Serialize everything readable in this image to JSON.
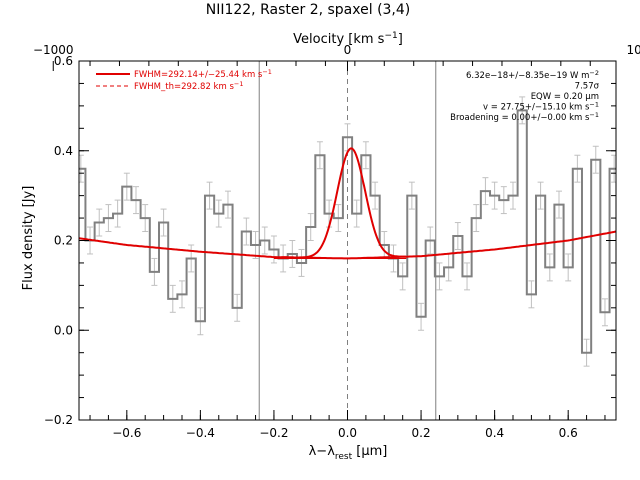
{
  "chart_data": {
    "type": "line",
    "title": "NII122, Raster 2, spaxel (3,4)",
    "xlabel": "λ−λ",
    "xlabel_sub": "rest",
    "xlabel_unit": " [μm]",
    "ylabel": "Flux density [Jy]",
    "top_axis_label": "Velocity [km s",
    "top_axis_sup": "−1",
    "top_axis_close": "]",
    "xlim": [
      -0.73,
      0.73
    ],
    "ylim": [
      -0.2,
      0.6
    ],
    "x_ticks": [
      -0.6,
      -0.4,
      -0.2,
      0.0,
      0.2,
      0.4,
      0.6
    ],
    "x_tick_labels": [
      "−0.6",
      "−0.4",
      "−0.2",
      "0.0",
      "0.2",
      "0.4",
      "0.6"
    ],
    "y_ticks": [
      -0.2,
      0.0,
      0.2,
      0.4,
      0.6
    ],
    "y_tick_labels": [
      "−0.2",
      "0.0",
      "0.2",
      "0.4",
      "0.6"
    ],
    "top_ticks_x": [
      -0.8,
      0.0,
      0.8
    ],
    "top_tick_labels": [
      "−1000",
      "0",
      "1000"
    ],
    "vlines_solid": [
      -0.24,
      0.24
    ],
    "vlines_dashed": [
      0.0
    ],
    "spectrum": {
      "x": [
        -0.725,
        -0.7,
        -0.675,
        -0.65,
        -0.625,
        -0.6,
        -0.575,
        -0.55,
        -0.525,
        -0.5,
        -0.475,
        -0.45,
        -0.425,
        -0.4,
        -0.375,
        -0.35,
        -0.325,
        -0.3,
        -0.275,
        -0.25,
        -0.225,
        -0.2,
        -0.175,
        -0.15,
        -0.125,
        -0.1,
        -0.075,
        -0.05,
        -0.025,
        0.0,
        0.025,
        0.05,
        0.075,
        0.1,
        0.125,
        0.15,
        0.175,
        0.2,
        0.225,
        0.25,
        0.275,
        0.3,
        0.325,
        0.35,
        0.375,
        0.4,
        0.425,
        0.45,
        0.475,
        0.5,
        0.525,
        0.55,
        0.575,
        0.6,
        0.625,
        0.65,
        0.675,
        0.7,
        0.725
      ],
      "y": [
        0.36,
        0.2,
        0.24,
        0.25,
        0.26,
        0.32,
        0.29,
        0.25,
        0.13,
        0.24,
        0.07,
        0.08,
        0.16,
        0.02,
        0.3,
        0.26,
        0.28,
        0.05,
        0.22,
        0.19,
        0.2,
        0.18,
        0.16,
        0.17,
        0.15,
        0.23,
        0.39,
        0.26,
        0.25,
        0.43,
        0.26,
        0.39,
        0.3,
        0.19,
        0.16,
        0.12,
        0.3,
        0.03,
        0.2,
        0.12,
        0.14,
        0.21,
        0.12,
        0.25,
        0.31,
        0.3,
        0.29,
        0.3,
        0.49,
        0.08,
        0.3,
        0.14,
        0.28,
        0.14,
        0.36,
        -0.05,
        0.38,
        0.04,
        0.36
      ],
      "err": [
        0.03,
        0.03,
        0.03,
        0.03,
        0.03,
        0.03,
        0.03,
        0.03,
        0.03,
        0.03,
        0.03,
        0.03,
        0.03,
        0.03,
        0.03,
        0.03,
        0.03,
        0.03,
        0.03,
        0.03,
        0.03,
        0.03,
        0.03,
        0.03,
        0.03,
        0.03,
        0.03,
        0.03,
        0.03,
        0.03,
        0.03,
        0.03,
        0.03,
        0.03,
        0.03,
        0.03,
        0.03,
        0.03,
        0.03,
        0.03,
        0.03,
        0.03,
        0.03,
        0.03,
        0.03,
        0.03,
        0.03,
        0.03,
        0.03,
        0.03,
        0.03,
        0.03,
        0.03,
        0.03,
        0.03,
        0.03,
        0.03,
        0.03,
        0.03
      ]
    },
    "fit": {
      "baseline_x": [
        -0.73,
        -0.6,
        -0.4,
        -0.2,
        0.0,
        0.2,
        0.4,
        0.6,
        0.73
      ],
      "baseline_y": [
        0.205,
        0.19,
        0.175,
        0.163,
        0.16,
        0.165,
        0.18,
        0.2,
        0.22
      ],
      "gaussian_center": 0.01,
      "gaussian_amplitude": 0.245,
      "gaussian_sigma": 0.038,
      "gaussian_range": [
        -0.18,
        0.16
      ]
    },
    "colors": {
      "spectrum": "#808080",
      "errorbars": "#c0c0c0",
      "fit": "#e00000",
      "vlines": "#808080"
    },
    "legend": [
      {
        "style": "solid",
        "text": "FWHM=292.14+/−25.44 km s",
        "sup": "−1"
      },
      {
        "style": "dashed",
        "text": "FWHM_th=292.82 km s",
        "sup": "−1"
      }
    ],
    "annotations": [
      {
        "text": "6.32e−18+/−8.35e−19 W m",
        "sup": "−2"
      },
      {
        "text": "7.57σ",
        "sup": ""
      },
      {
        "text": "EQW = 0.20 μm",
        "sup": ""
      },
      {
        "text": "v = 27.75+/−15.10 km s",
        "sup": "−1"
      },
      {
        "text": "Broadening = 0.00+/−0.00 km s",
        "sup": "−1"
      }
    ]
  }
}
